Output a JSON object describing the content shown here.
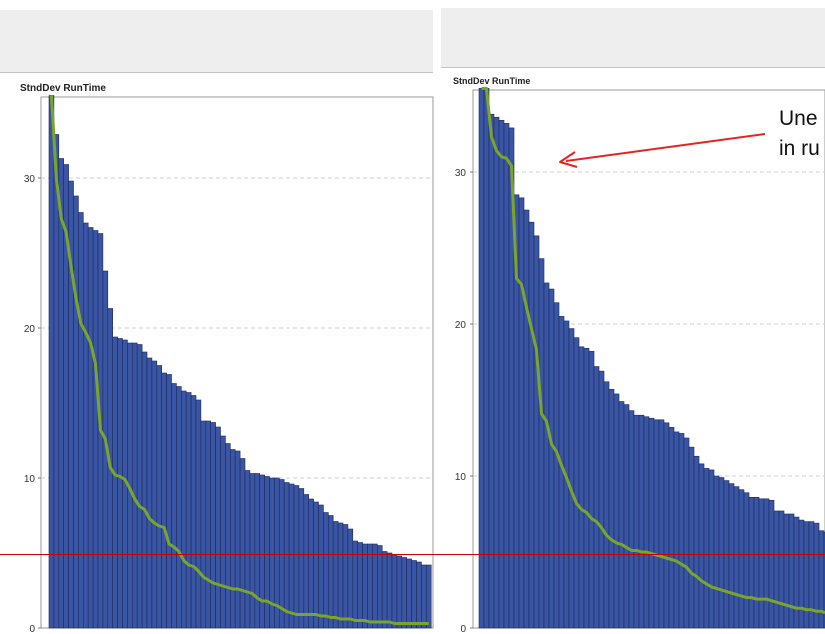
{
  "colors": {
    "bar": "#3a55a4",
    "bar_edge": "#1b2a5a",
    "line": "#7aa52b",
    "annotation": "#e8231f",
    "reference": "#cc0000"
  },
  "panels": [
    {
      "title": "StndDev RunTime"
    },
    {
      "title": "StndDev RunTime"
    }
  ],
  "annotation": {
    "line1": "Une",
    "line2": "in ru"
  },
  "chart_data": [
    {
      "type": "bar",
      "title": "StndDev RunTime",
      "ylim": [
        0,
        35
      ],
      "yticks": [
        0,
        10,
        20,
        30
      ],
      "grid": true,
      "bar_values": [
        35.5,
        32.9,
        31.3,
        30.9,
        29.8,
        28.8,
        27.7,
        27.0,
        26.7,
        26.5,
        26.3,
        23.8,
        21.3,
        19.4,
        19.3,
        19.2,
        19.0,
        19.0,
        18.9,
        18.4,
        18.0,
        17.8,
        17.5,
        17.0,
        16.9,
        16.3,
        16.1,
        15.8,
        15.7,
        15.5,
        15.2,
        13.8,
        13.8,
        13.7,
        13.4,
        12.8,
        12.3,
        11.9,
        11.8,
        11.3,
        10.5,
        10.3,
        10.3,
        10.2,
        10.1,
        10.0,
        10.0,
        9.9,
        9.7,
        9.6,
        9.5,
        9.3,
        8.9,
        8.6,
        8.4,
        8.2,
        7.7,
        7.5,
        7.1,
        7.0,
        6.9,
        6.6,
        5.8,
        5.7,
        5.6,
        5.6,
        5.6,
        5.5,
        5.1,
        5.0,
        4.9,
        4.8,
        4.7,
        4.6,
        4.5,
        4.4,
        4.2,
        4.2
      ],
      "line_values": [
        35.5,
        30.0,
        27.3,
        26.4,
        24.1,
        22.0,
        20.3,
        19.7,
        19.0,
        17.6,
        13.2,
        12.6,
        10.7,
        10.2,
        10.1,
        9.9,
        9.3,
        8.6,
        8.1,
        7.9,
        7.3,
        7.0,
        6.8,
        6.7,
        5.6,
        5.4,
        5.1,
        4.5,
        4.2,
        4.1,
        3.8,
        3.4,
        3.2,
        3.0,
        2.9,
        2.8,
        2.7,
        2.6,
        2.6,
        2.5,
        2.4,
        2.3,
        2.0,
        1.8,
        1.8,
        1.6,
        1.5,
        1.3,
        1.1,
        1.0,
        0.9,
        0.9,
        0.9,
        0.9,
        0.9,
        0.8,
        0.8,
        0.7,
        0.7,
        0.6,
        0.6,
        0.6,
        0.5,
        0.5,
        0.5,
        0.4,
        0.4,
        0.4,
        0.4,
        0.4,
        0.3,
        0.3,
        0.3,
        0.3,
        0.3,
        0.3,
        0.3,
        0.3
      ]
    },
    {
      "type": "bar",
      "title": "StndDev RunTime",
      "ylim": [
        0,
        35
      ],
      "yticks": [
        0,
        10,
        20,
        30
      ],
      "grid": true,
      "bar_values": [
        35.5,
        35.5,
        33.8,
        33.6,
        33.4,
        33.2,
        32.9,
        28.5,
        28.3,
        27.5,
        26.7,
        25.8,
        24.3,
        22.7,
        22.3,
        21.4,
        20.5,
        20.2,
        19.7,
        19.1,
        18.5,
        18.4,
        18.2,
        17.2,
        16.9,
        16.2,
        15.7,
        15.4,
        14.9,
        14.7,
        14.3,
        14.0,
        14.0,
        13.9,
        13.8,
        13.7,
        13.7,
        13.5,
        13.2,
        12.9,
        12.8,
        12.5,
        11.9,
        11.3,
        10.8,
        10.5,
        10.4,
        10.0,
        9.9,
        9.7,
        9.5,
        9.3,
        9.1,
        8.9,
        8.6,
        8.6,
        8.5,
        8.5,
        8.4,
        7.7,
        7.7,
        7.5,
        7.5,
        7.3,
        7.1,
        7.0,
        7.0,
        6.9,
        6.4,
        6.3
      ],
      "line_values": [
        35.5,
        35.5,
        32.3,
        31.4,
        31.0,
        30.9,
        30.4,
        23.0,
        22.6,
        21.1,
        19.7,
        18.3,
        14.1,
        13.6,
        12.1,
        11.6,
        10.7,
        9.9,
        9.0,
        8.2,
        7.8,
        7.6,
        7.2,
        7.0,
        6.6,
        6.1,
        5.8,
        5.6,
        5.5,
        5.3,
        5.1,
        5.1,
        5.0,
        5.0,
        4.9,
        4.8,
        4.7,
        4.6,
        4.5,
        4.4,
        4.2,
        4.0,
        3.6,
        3.4,
        3.1,
        2.9,
        2.7,
        2.6,
        2.5,
        2.4,
        2.3,
        2.2,
        2.1,
        2.0,
        2.0,
        1.9,
        1.9,
        1.9,
        1.8,
        1.7,
        1.6,
        1.5,
        1.4,
        1.3,
        1.3,
        1.2,
        1.2,
        1.1,
        1.1,
        1.0
      ]
    }
  ]
}
